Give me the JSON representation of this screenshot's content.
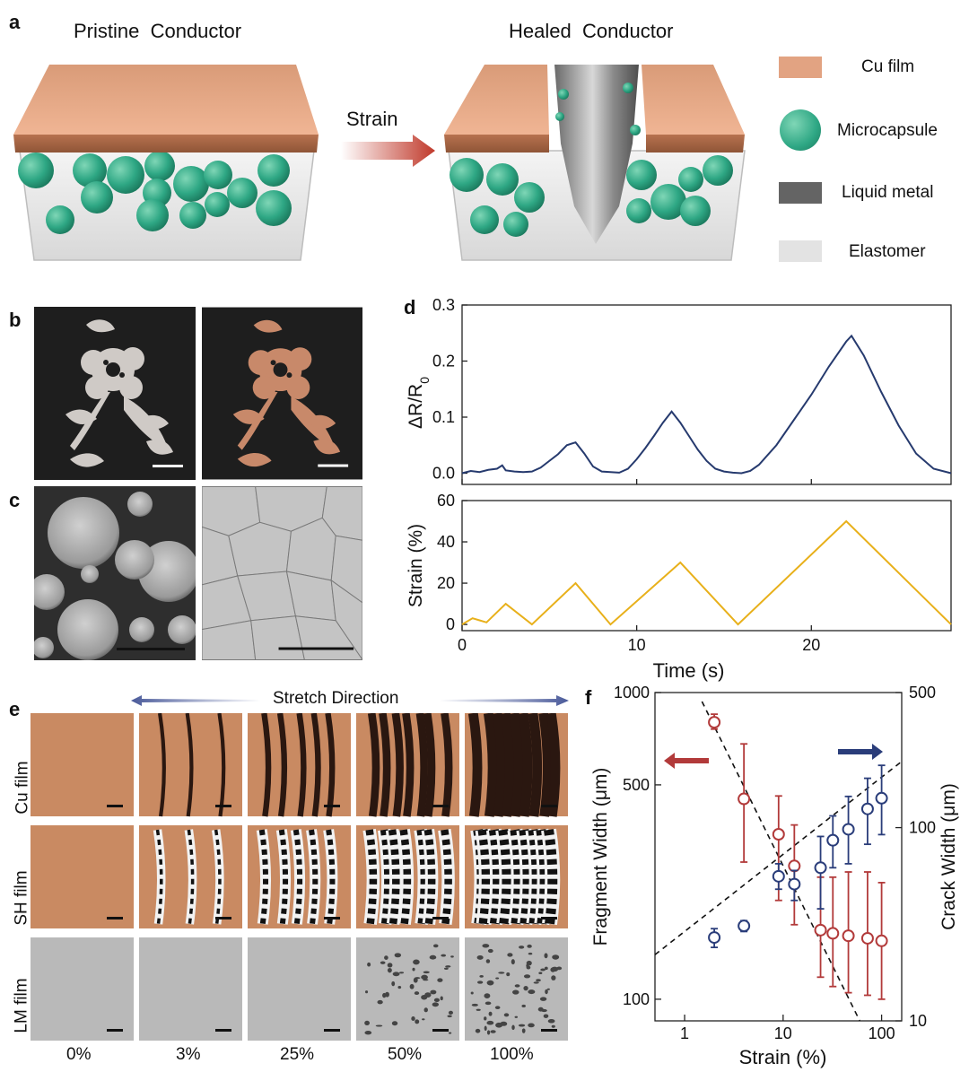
{
  "panel_a": {
    "label": "a",
    "pristine_title": "Pristine  Conductor",
    "healed_title": "Healed  Conductor",
    "strain_label": "Strain",
    "legend": [
      {
        "label": "Cu film",
        "color": "#e2a382"
      },
      {
        "label": "Microcapsule",
        "color": "#35b08c"
      },
      {
        "label": "Liquid metal",
        "color": "#646464"
      },
      {
        "label": "Elastomer",
        "color": "#e3e3e3"
      }
    ]
  },
  "panel_b": {
    "label": "b"
  },
  "panel_c": {
    "label": "c"
  },
  "panel_d": {
    "label": "d"
  },
  "panel_e": {
    "label": "e",
    "stretch_direction": "Stretch Direction",
    "rows": [
      "Cu film",
      "SH film",
      "LM film"
    ],
    "strains": [
      "0%",
      "3%",
      "25%",
      "50%",
      "100%"
    ]
  },
  "panel_f": {
    "label": "f"
  },
  "chart_data": [
    {
      "type": "line",
      "panel": "d-top",
      "ylabel": "ΔR/R0",
      "ylim": [
        -0.02,
        0.3
      ],
      "xlim": [
        0,
        28
      ],
      "yticks": [
        "0.0",
        "0.1",
        "0.2",
        "0.3"
      ],
      "series": [
        {
          "color": "#263a6e",
          "x": [
            0,
            0.5,
            1,
            1.5,
            2,
            2.3,
            2.5,
            3,
            3.5,
            4,
            4.5,
            5,
            5.5,
            6,
            6.5,
            7,
            7.5,
            8,
            8.5,
            9,
            9.5,
            10,
            10.5,
            11,
            11.5,
            12,
            12.5,
            13,
            13.5,
            14,
            14.5,
            15,
            15.5,
            16,
            16.5,
            17,
            18,
            19,
            20,
            21,
            22,
            22.3,
            23,
            24,
            25,
            26,
            27,
            28
          ],
          "y": [
            0.0,
            0.004,
            0.002,
            0.006,
            0.008,
            0.014,
            0.005,
            0.003,
            0.002,
            0.003,
            0.01,
            0.022,
            0.034,
            0.05,
            0.055,
            0.035,
            0.012,
            0.003,
            0.002,
            0.001,
            0.008,
            0.025,
            0.045,
            0.067,
            0.09,
            0.11,
            0.09,
            0.066,
            0.042,
            0.022,
            0.008,
            0.003,
            0.001,
            0.0,
            0.004,
            0.015,
            0.05,
            0.095,
            0.14,
            0.19,
            0.235,
            0.245,
            0.21,
            0.145,
            0.085,
            0.035,
            0.008,
            0.0
          ]
        }
      ]
    },
    {
      "type": "line",
      "panel": "d-bottom",
      "ylabel": "Strain (%)",
      "xlabel": "Time (s)",
      "ylim": [
        -3,
        60
      ],
      "xlim": [
        0,
        28
      ],
      "yticks": [
        "0",
        "20",
        "40",
        "60"
      ],
      "xticks": [
        "0",
        "10",
        "20"
      ],
      "series": [
        {
          "color": "#e8b01a",
          "x": [
            0,
            0.6,
            1.0,
            1.4,
            2.5,
            4.0,
            6.5,
            8.5,
            12.5,
            15.8,
            22.0,
            28.0
          ],
          "y": [
            0,
            3,
            2,
            1,
            10,
            0,
            20,
            0,
            30,
            0,
            50,
            0
          ]
        }
      ]
    },
    {
      "type": "scatter",
      "panel": "f",
      "xlabel": "Strain (%)",
      "ylabel": "Fragment Width (μm)",
      "ylabel_right": "Crack Width (μm)",
      "x_scale": "log",
      "y_scale": "log",
      "xlim": [
        0.5,
        160
      ],
      "ylim": [
        85,
        1000
      ],
      "ylim_right": [
        10,
        500
      ],
      "xticks": [
        "1",
        "10",
        "100"
      ],
      "yticks": [
        "100",
        "500",
        "1000"
      ],
      "yticks_right": [
        "10",
        "100",
        "500"
      ],
      "series": [
        {
          "axis": "left",
          "color": "#b23a3a",
          "x": [
            2,
            4,
            9,
            13,
            24,
            32,
            46,
            72,
            100
          ],
          "y": [
            800,
            450,
            345,
            272,
            168,
            164,
            161,
            158,
            155
          ],
          "err_low": [
            760,
            280,
            210,
            175,
            118,
            110,
            105,
            103,
            100
          ],
          "err_high": [
            850,
            680,
            460,
            370,
            250,
            250,
            260,
            260,
            240
          ]
        },
        {
          "axis": "right",
          "color": "#2a3d7a",
          "x": [
            2,
            4,
            9,
            13,
            24,
            32,
            46,
            72,
            100
          ],
          "y": [
            27,
            31,
            56,
            51,
            62,
            86,
            98,
            125,
            142
          ],
          "err_low": [
            24,
            29,
            48,
            42,
            38,
            62,
            65,
            82,
            92
          ],
          "err_high": [
            30,
            33,
            65,
            60,
            90,
            115,
            145,
            180,
            210
          ]
        }
      ]
    }
  ]
}
